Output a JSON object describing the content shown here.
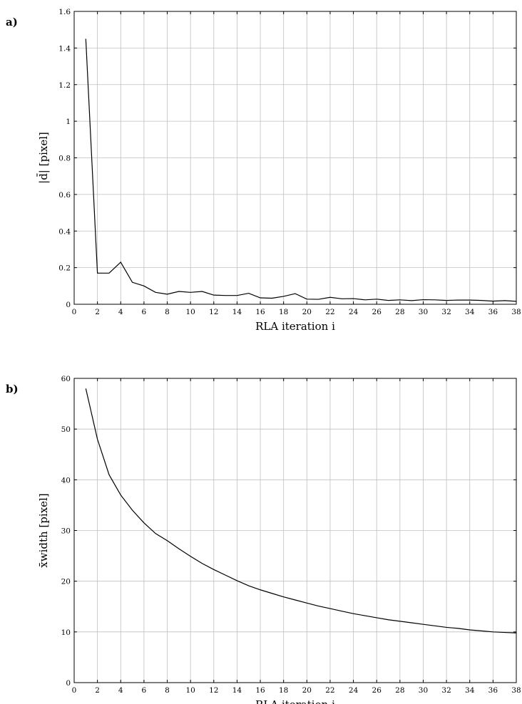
{
  "chart_data": [
    {
      "type": "line",
      "panel_label": "a)",
      "xlabel": "RLA iteration i",
      "ylabel": "|d̄| [pixel]",
      "xlim": [
        0,
        38
      ],
      "ylim": [
        0,
        1.6
      ],
      "xticks": [
        0,
        2,
        4,
        6,
        8,
        10,
        12,
        14,
        16,
        18,
        20,
        22,
        24,
        26,
        28,
        30,
        32,
        34,
        36,
        38
      ],
      "yticks": [
        0,
        0.2,
        0.4,
        0.6,
        0.8,
        1,
        1.2,
        1.4,
        1.6
      ],
      "grid": true,
      "x": [
        1,
        2,
        3,
        4,
        5,
        6,
        7,
        8,
        9,
        10,
        11,
        12,
        13,
        14,
        15,
        16,
        17,
        18,
        19,
        20,
        21,
        22,
        23,
        24,
        25,
        26,
        27,
        28,
        29,
        30,
        31,
        32,
        33,
        34,
        35,
        36,
        37,
        38
      ],
      "series": [
        {
          "values": [
            1.45,
            0.17,
            0.17,
            0.23,
            0.12,
            0.1,
            0.065,
            0.055,
            0.07,
            0.065,
            0.07,
            0.05,
            0.048,
            0.048,
            0.06,
            0.035,
            0.033,
            0.043,
            0.058,
            0.028,
            0.027,
            0.038,
            0.03,
            0.031,
            0.024,
            0.028,
            0.021,
            0.024,
            0.02,
            0.025,
            0.024,
            0.021,
            0.023,
            0.023,
            0.021,
            0.017,
            0.02,
            0.016
          ],
          "color": "#000000"
        }
      ]
    },
    {
      "type": "line",
      "panel_label": "b)",
      "xlabel": "RLA iteration i",
      "ylabel": "x̄width [pixel]",
      "xlim": [
        0,
        38
      ],
      "ylim": [
        0,
        60
      ],
      "xticks": [
        0,
        2,
        4,
        6,
        8,
        10,
        12,
        14,
        16,
        18,
        20,
        22,
        24,
        26,
        28,
        30,
        32,
        34,
        36,
        38
      ],
      "yticks": [
        0,
        10,
        20,
        30,
        40,
        50,
        60
      ],
      "grid": true,
      "x": [
        1,
        2,
        3,
        4,
        5,
        6,
        7,
        8,
        9,
        10,
        11,
        12,
        13,
        14,
        15,
        16,
        17,
        18,
        19,
        20,
        21,
        22,
        23,
        24,
        25,
        26,
        27,
        28,
        29,
        30,
        31,
        32,
        33,
        34,
        35,
        36,
        37,
        38
      ],
      "series": [
        {
          "values": [
            58,
            48,
            41,
            37,
            34,
            31.5,
            29.4,
            28,
            26.4,
            24.9,
            23.5,
            22.3,
            21.2,
            20.1,
            19.1,
            18.3,
            17.6,
            16.9,
            16.3,
            15.7,
            15.1,
            14.6,
            14.1,
            13.6,
            13.2,
            12.8,
            12.4,
            12.1,
            11.8,
            11.5,
            11.2,
            10.9,
            10.7,
            10.4,
            10.2,
            10.0,
            9.9,
            9.8
          ],
          "color": "#000000"
        }
      ]
    }
  ]
}
